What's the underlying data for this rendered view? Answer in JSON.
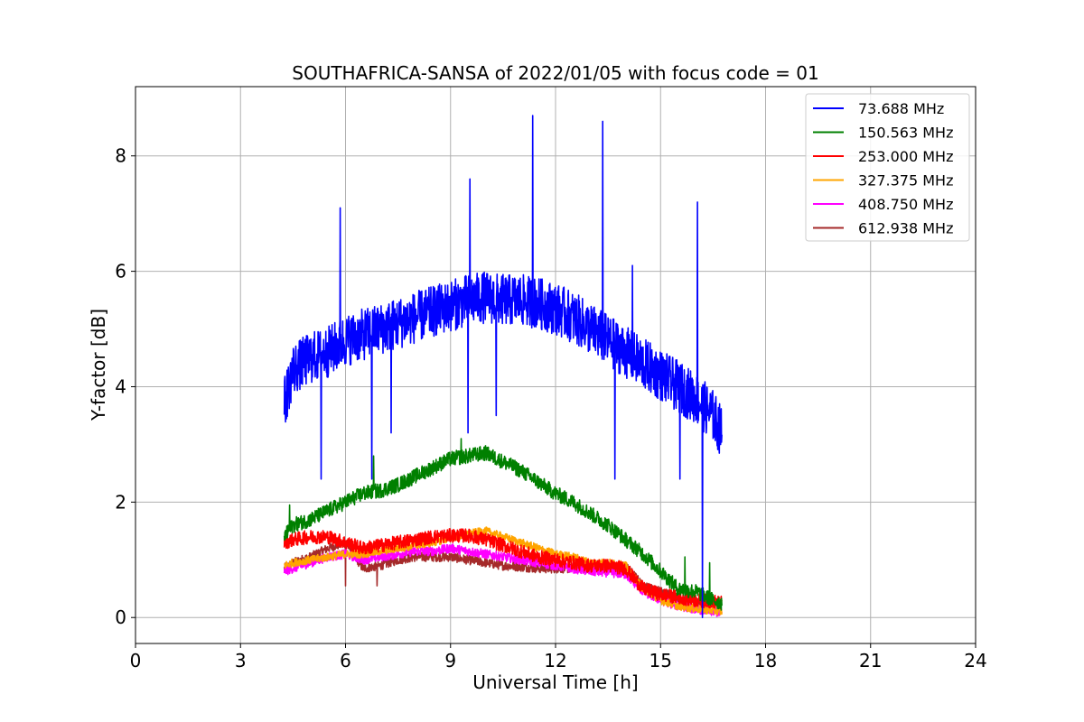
{
  "chart_data": {
    "type": "line",
    "title": "SOUTHAFRICA-SANSA of 2022/01/05 with focus code = 01",
    "xlabel": "Universal Time [h]",
    "ylabel": "Y-factor [dB]",
    "xlim": [
      0,
      24
    ],
    "ylim": [
      -0.45,
      9.2
    ],
    "xticks": [
      0,
      3,
      6,
      9,
      12,
      15,
      18,
      21,
      24
    ],
    "yticks": [
      0,
      2,
      4,
      6,
      8
    ],
    "grid": true,
    "legend_position": "top-right",
    "series": [
      {
        "name": " 73.688 MHz",
        "color": "#0000ff",
        "x": [
          4.25,
          4.5,
          5.0,
          5.5,
          6.0,
          6.5,
          7.0,
          7.5,
          8.0,
          8.5,
          9.0,
          9.5,
          10.0,
          10.5,
          11.0,
          11.5,
          12.0,
          12.5,
          13.0,
          13.5,
          14.0,
          14.5,
          15.0,
          15.5,
          16.0,
          16.5,
          16.75
        ],
        "y": [
          3.7,
          4.3,
          4.5,
          4.6,
          4.8,
          4.9,
          5.0,
          5.1,
          5.2,
          5.3,
          5.4,
          5.5,
          5.55,
          5.5,
          5.5,
          5.45,
          5.35,
          5.2,
          5.0,
          4.8,
          4.6,
          4.4,
          4.2,
          4.0,
          3.8,
          3.5,
          3.2
        ],
        "noise": 0.45,
        "spikes": [
          {
            "x": 5.3,
            "y": 2.4
          },
          {
            "x": 5.85,
            "y": 7.1
          },
          {
            "x": 6.75,
            "y": 2.4
          },
          {
            "x": 7.3,
            "y": 3.2
          },
          {
            "x": 9.5,
            "y": 3.2
          },
          {
            "x": 9.55,
            "y": 7.6
          },
          {
            "x": 10.3,
            "y": 3.5
          },
          {
            "x": 11.35,
            "y": 8.7
          },
          {
            "x": 13.35,
            "y": 8.6
          },
          {
            "x": 13.7,
            "y": 2.4
          },
          {
            "x": 14.2,
            "y": 6.1
          },
          {
            "x": 15.55,
            "y": 2.4
          },
          {
            "x": 16.05,
            "y": 7.2
          },
          {
            "x": 16.2,
            "y": 0.0
          }
        ]
      },
      {
        "name": "150.563 MHz",
        "color": "#008000",
        "x": [
          4.25,
          4.5,
          5.0,
          5.5,
          6.0,
          6.5,
          7.0,
          7.5,
          8.0,
          8.5,
          9.0,
          9.5,
          10.0,
          10.5,
          11.0,
          11.5,
          12.0,
          12.5,
          13.0,
          13.5,
          14.0,
          14.5,
          15.0,
          15.5,
          16.0,
          16.5,
          16.75
        ],
        "y": [
          1.4,
          1.6,
          1.7,
          1.85,
          2.0,
          2.15,
          2.2,
          2.3,
          2.45,
          2.6,
          2.75,
          2.8,
          2.85,
          2.7,
          2.55,
          2.35,
          2.15,
          2.0,
          1.8,
          1.6,
          1.35,
          1.1,
          0.8,
          0.5,
          0.45,
          0.3,
          0.25
        ],
        "noise": 0.13,
        "spikes": [
          {
            "x": 4.4,
            "y": 1.95
          },
          {
            "x": 6.8,
            "y": 2.8
          },
          {
            "x": 9.3,
            "y": 3.1
          },
          {
            "x": 15.7,
            "y": 1.05
          },
          {
            "x": 16.4,
            "y": 0.95
          }
        ]
      },
      {
        "name": "253.000 MHz",
        "color": "#ff0000",
        "x": [
          4.25,
          4.5,
          5.0,
          5.5,
          6.0,
          6.5,
          7.0,
          7.5,
          8.0,
          8.5,
          9.0,
          9.5,
          10.0,
          10.5,
          11.0,
          11.5,
          12.0,
          12.5,
          13.0,
          13.5,
          14.0,
          14.5,
          15.0,
          15.5,
          16.0,
          16.5,
          16.75
        ],
        "y": [
          1.3,
          1.35,
          1.4,
          1.4,
          1.3,
          1.2,
          1.25,
          1.3,
          1.35,
          1.4,
          1.42,
          1.42,
          1.35,
          1.25,
          1.15,
          1.05,
          1.0,
          0.95,
          0.9,
          0.9,
          0.85,
          0.5,
          0.4,
          0.35,
          0.3,
          0.28,
          0.25
        ],
        "noise": 0.12,
        "spikes": []
      },
      {
        "name": "327.375 MHz",
        "color": "#ffa500",
        "x": [
          4.25,
          4.5,
          5.0,
          5.5,
          6.0,
          6.5,
          7.0,
          7.5,
          8.0,
          8.5,
          9.0,
          9.5,
          10.0,
          10.5,
          11.0,
          11.5,
          12.0,
          12.5,
          13.0,
          13.5,
          14.0,
          14.5,
          15.0,
          15.5,
          16.0,
          16.5,
          16.75
        ],
        "y": [
          0.9,
          0.95,
          1.0,
          1.05,
          1.1,
          1.1,
          1.15,
          1.2,
          1.25,
          1.3,
          1.38,
          1.45,
          1.5,
          1.4,
          1.3,
          1.2,
          1.1,
          1.05,
          0.95,
          0.95,
          0.9,
          0.5,
          0.3,
          0.2,
          0.15,
          0.12,
          0.1
        ],
        "noise": 0.07,
        "spikes": []
      },
      {
        "name": "408.750 MHz",
        "color": "#ff00ff",
        "x": [
          4.25,
          4.5,
          5.0,
          5.5,
          6.0,
          6.5,
          7.0,
          7.5,
          8.0,
          8.5,
          9.0,
          9.5,
          10.0,
          10.5,
          11.0,
          11.5,
          12.0,
          12.5,
          13.0,
          13.5,
          14.0,
          14.5,
          15.0,
          15.5,
          16.0,
          16.5,
          16.75
        ],
        "y": [
          0.8,
          0.85,
          0.95,
          1.05,
          1.1,
          1.0,
          1.05,
          1.1,
          1.15,
          1.15,
          1.2,
          1.15,
          1.1,
          1.05,
          1.0,
          0.95,
          0.9,
          0.85,
          0.8,
          0.78,
          0.75,
          0.45,
          0.3,
          0.2,
          0.15,
          0.1,
          0.08
        ],
        "noise": 0.08,
        "spikes": []
      },
      {
        "name": "612.938 MHz",
        "color": "#a52a2a",
        "x": [
          4.25,
          4.5,
          5.0,
          5.5,
          6.0,
          6.5,
          7.0,
          7.5,
          8.0,
          8.5,
          9.0,
          9.5,
          10.0,
          10.5,
          11.0,
          11.5,
          12.0,
          12.5,
          13.0,
          13.5,
          14.0,
          14.5,
          15.0,
          15.5,
          16.0,
          16.5,
          16.75
        ],
        "y": [
          0.85,
          0.95,
          1.05,
          1.2,
          1.3,
          0.85,
          0.9,
          1.0,
          1.05,
          1.05,
          1.05,
          1.0,
          0.95,
          0.9,
          0.88,
          0.85,
          0.85,
          0.85,
          0.85,
          0.85,
          0.9,
          0.55,
          0.45,
          0.35,
          0.3,
          0.25,
          0.2
        ],
        "noise": 0.08,
        "spikes": [
          {
            "x": 6.0,
            "y": 0.55
          },
          {
            "x": 6.9,
            "y": 0.55
          }
        ]
      }
    ]
  }
}
